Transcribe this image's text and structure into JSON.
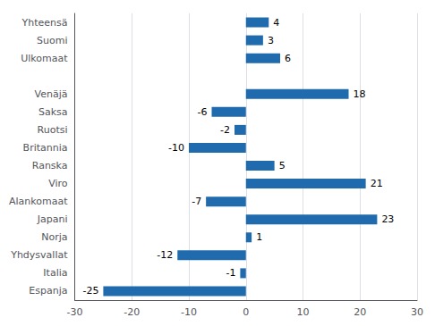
{
  "chart_data": {
    "type": "bar",
    "orientation": "horizontal",
    "categories": [
      "Yhteensä",
      "Suomi",
      "Ulkomaat",
      null,
      "Venäjä",
      "Saksa",
      "Ruotsi",
      "Britannia",
      "Ranska",
      "Viro",
      "Alankomaat",
      "Japani",
      "Norja",
      "Yhdysvallat",
      "Italia",
      "Espanja"
    ],
    "values": [
      4,
      3,
      6,
      null,
      18,
      -6,
      -2,
      -10,
      5,
      21,
      -7,
      23,
      1,
      -12,
      -1,
      -25
    ],
    "color": "#1F6BAD",
    "xlim": [
      -30,
      30
    ],
    "xticks": [
      -30,
      -20,
      -10,
      0,
      10,
      20,
      30
    ],
    "grid": true,
    "data_labels": true
  }
}
